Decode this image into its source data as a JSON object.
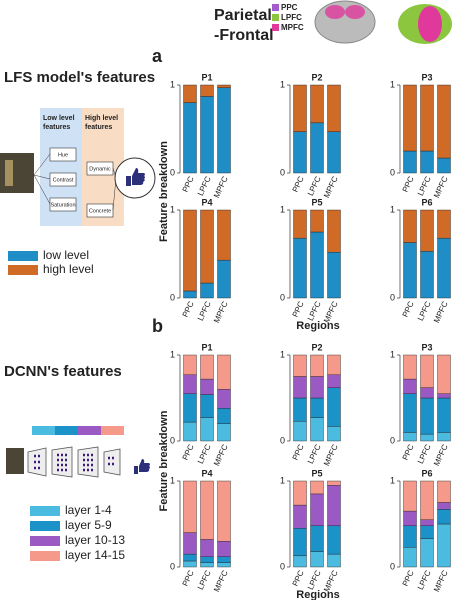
{
  "figure": {
    "top_title": [
      "Parietal",
      "-Frontal"
    ],
    "brain_legend": [
      {
        "label": "PPC",
        "color": "#a35bd0"
      },
      {
        "label": "LPFC",
        "color": "#8cc63f"
      },
      {
        "label": "MPFC",
        "color": "#e0399b"
      }
    ],
    "lfs_title": "LFS model's features",
    "low_box": [
      "Low level",
      "features"
    ],
    "high_box": [
      "High level",
      "features"
    ],
    "low_items": [
      "Hue",
      "Contrast",
      "Saturation"
    ],
    "high_items": [
      "Dynamic",
      "Concrete"
    ],
    "dcnn_title": "DCNN's features"
  },
  "chart_data": [
    {
      "type": "stacked_bar",
      "label": "a",
      "ylabel": "Feature breakdown",
      "xlabel": "Regions",
      "categories": [
        "PPC",
        "LPFC",
        "MPFC"
      ],
      "ylim": [
        0,
        1
      ],
      "yticks": [
        0,
        1
      ],
      "series": [
        {
          "name": "low level",
          "color": "#1f8dc6"
        },
        {
          "name": "high level",
          "color": "#cf6a27"
        }
      ],
      "plots": [
        {
          "title": "P1",
          "series_values": [
            [
              0.8,
              0.87,
              0.97
            ],
            [
              0.2,
              0.13,
              0.03
            ]
          ]
        },
        {
          "title": "P2",
          "series_values": [
            [
              0.47,
              0.57,
              0.47
            ],
            [
              0.53,
              0.43,
              0.53
            ]
          ]
        },
        {
          "title": "P3",
          "series_values": [
            [
              0.25,
              0.25,
              0.17
            ],
            [
              0.75,
              0.75,
              0.83
            ]
          ]
        },
        {
          "title": "P4",
          "series_values": [
            [
              0.08,
              0.17,
              0.43
            ],
            [
              0.92,
              0.83,
              0.57
            ]
          ]
        },
        {
          "title": "P5",
          "series_values": [
            [
              0.68,
              0.75,
              0.52
            ],
            [
              0.32,
              0.25,
              0.48
            ]
          ]
        },
        {
          "title": "P6",
          "series_values": [
            [
              0.63,
              0.53,
              0.68
            ],
            [
              0.37,
              0.47,
              0.32
            ]
          ]
        }
      ]
    },
    {
      "type": "stacked_bar",
      "label": "b",
      "ylabel": "Feature breakdown",
      "xlabel": "Regions",
      "categories": [
        "PPC",
        "LPFC",
        "MPFC"
      ],
      "ylim": [
        0,
        1
      ],
      "yticks": [
        0,
        1
      ],
      "series": [
        {
          "name": "layer 1-4",
          "color": "#4cbbe0"
        },
        {
          "name": "layer 5-9",
          "color": "#1b92c8"
        },
        {
          "name": "layer 10-13",
          "color": "#9b59c4"
        },
        {
          "name": "layer 14-15",
          "color": "#f59a8a"
        }
      ],
      "plots": [
        {
          "title": "P1",
          "series_values": [
            [
              0.22,
              0.27,
              0.2
            ],
            [
              0.33,
              0.27,
              0.18
            ],
            [
              0.22,
              0.18,
              0.22
            ],
            [
              0.23,
              0.28,
              0.4
            ]
          ]
        },
        {
          "title": "P2",
          "series_values": [
            [
              0.23,
              0.27,
              0.17
            ],
            [
              0.27,
              0.23,
              0.45
            ],
            [
              0.25,
              0.25,
              0.15
            ],
            [
              0.25,
              0.25,
              0.23
            ]
          ]
        },
        {
          "title": "P3",
          "series_values": [
            [
              0.1,
              0.08,
              0.1
            ],
            [
              0.45,
              0.42,
              0.4
            ],
            [
              0.17,
              0.12,
              0.05
            ],
            [
              0.28,
              0.38,
              0.45
            ]
          ]
        },
        {
          "title": "P4",
          "series_values": [
            [
              0.07,
              0.05,
              0.05
            ],
            [
              0.08,
              0.07,
              0.07
            ],
            [
              0.25,
              0.2,
              0.18
            ],
            [
              0.6,
              0.68,
              0.7
            ]
          ]
        },
        {
          "title": "P5",
          "series_values": [
            [
              0.13,
              0.18,
              0.15
            ],
            [
              0.32,
              0.3,
              0.33
            ],
            [
              0.27,
              0.37,
              0.47
            ],
            [
              0.28,
              0.15,
              0.05
            ]
          ]
        },
        {
          "title": "P6",
          "series_values": [
            [
              0.23,
              0.33,
              0.5
            ],
            [
              0.25,
              0.15,
              0.17
            ],
            [
              0.17,
              0.07,
              0.08
            ],
            [
              0.35,
              0.45,
              0.25
            ]
          ]
        }
      ]
    }
  ]
}
